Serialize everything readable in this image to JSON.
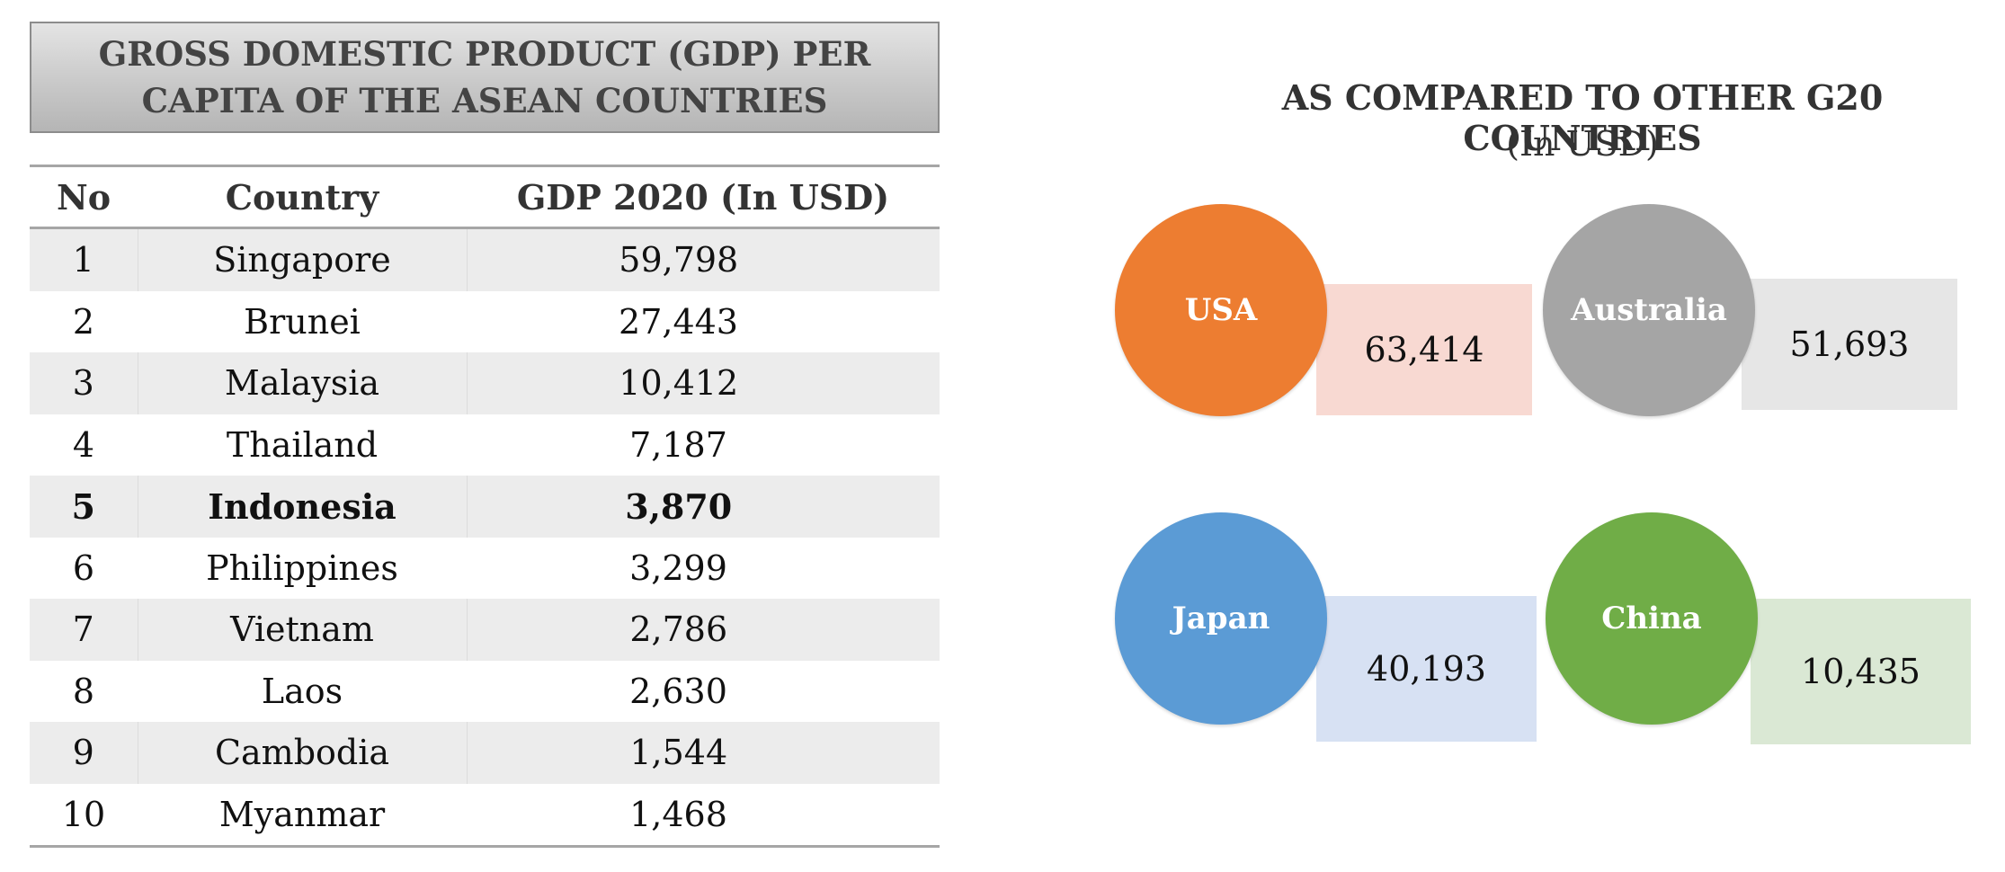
{
  "left": {
    "title": "GROSS DOMESTIC PRODUCT (GDP) PER CAPITA OF THE ASEAN COUNTRIES",
    "headers": {
      "no": "No",
      "country": "Country",
      "gdp": "GDP 2020 (In USD)"
    },
    "rows": [
      {
        "no": "1",
        "country": "Singapore",
        "gdp": "59,798"
      },
      {
        "no": "2",
        "country": "Brunei",
        "gdp": "27,443"
      },
      {
        "no": "3",
        "country": "Malaysia",
        "gdp": "10,412"
      },
      {
        "no": "4",
        "country": "Thailand",
        "gdp": "7,187"
      },
      {
        "no": "5",
        "country": "Indonesia",
        "gdp": "3,870",
        "highlight": true
      },
      {
        "no": "6",
        "country": "Philippines",
        "gdp": "3,299"
      },
      {
        "no": "7",
        "country": "Vietnam",
        "gdp": "2,786"
      },
      {
        "no": "8",
        "country": "Laos",
        "gdp": "2,630"
      },
      {
        "no": "9",
        "country": "Cambodia",
        "gdp": "1,544"
      },
      {
        "no": "10",
        "country": "Myanmar",
        "gdp": "1,468"
      }
    ]
  },
  "right": {
    "title": "AS COMPARED TO OTHER G20 COUNTRIES",
    "subtitle": "(In USD)",
    "countries": [
      {
        "name": "USA",
        "value": "63,414",
        "circle_color": "#ed7d31",
        "box_color": "#f8d9d2"
      },
      {
        "name": "Australia",
        "value": "51,693",
        "circle_color": "#a5a5a5",
        "box_color": "#e6e6e6"
      },
      {
        "name": "Japan",
        "value": "40,193",
        "circle_color": "#5b9bd5",
        "box_color": "#d7e1f3"
      },
      {
        "name": "China",
        "value": "10,435",
        "circle_color": "#70ad47",
        "box_color": "#dae8d4"
      }
    ]
  }
}
